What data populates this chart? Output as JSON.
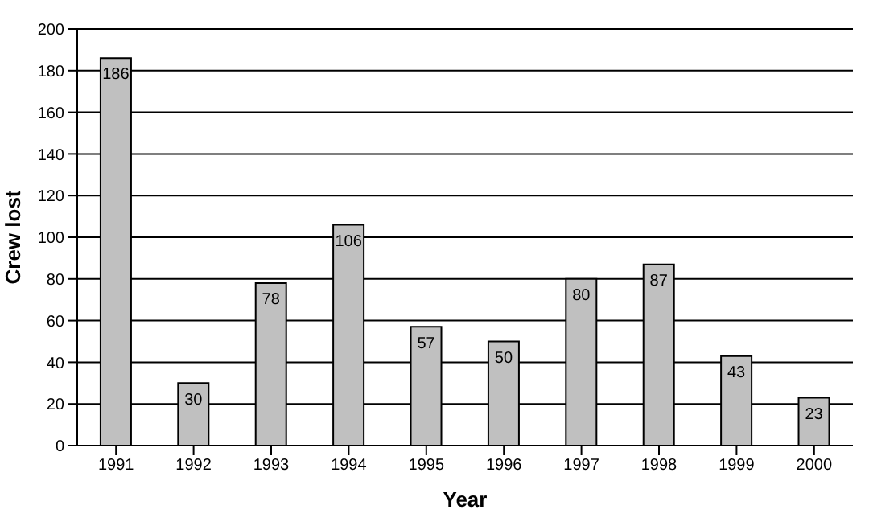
{
  "chart_data": {
    "type": "bar",
    "xlabel": "Year",
    "ylabel": "Crew lost",
    "categories": [
      "1991",
      "1992",
      "1993",
      "1994",
      "1995",
      "1996",
      "1997",
      "1998",
      "1999",
      "2000"
    ],
    "values": [
      186,
      30,
      78,
      106,
      57,
      50,
      80,
      87,
      43,
      23
    ],
    "color": "#c0c0c0",
    "ylim": [
      0,
      200
    ],
    "yticks": [
      0,
      20,
      40,
      60,
      80,
      100,
      120,
      140,
      160,
      180,
      200
    ],
    "grid": "y",
    "data_labels": true
  }
}
